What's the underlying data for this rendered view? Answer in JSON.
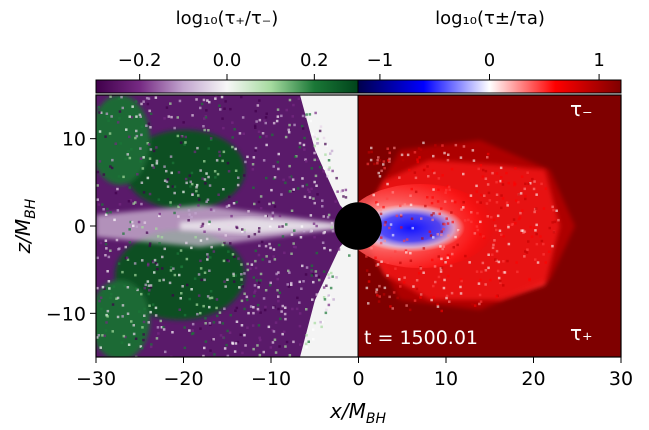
{
  "chart_data": {
    "type": "heatmap",
    "left_panel": {
      "colorbar_label": "log₁₀(τ₊/τ₋)",
      "colorbar_ticks": [
        "−0.2",
        "0.0",
        "0.2"
      ],
      "colorbar_tick_values": [
        -0.2,
        0.0,
        0.2
      ],
      "colorbar_range": [
        -0.3,
        0.3
      ],
      "colormap": [
        "#40004b",
        "#762a83",
        "#c2a5cf",
        "#f7f7f7",
        "#a6dba0",
        "#1b7837",
        "#00441b"
      ]
    },
    "right_panel": {
      "colorbar_label": "log₁₀(τ±/τa)",
      "colorbar_ticks": [
        "−1",
        "0",
        "1"
      ],
      "colorbar_tick_values": [
        -1,
        0,
        1
      ],
      "colorbar_range": [
        -1.2,
        1.2
      ],
      "colormap": [
        "#00004d",
        "#0000ff",
        "#ffffff",
        "#ff0000",
        "#7f0000"
      ],
      "upper_label": "τ₋",
      "lower_label": "τ₊",
      "time_label": "t = 1500.01"
    },
    "x_axis": {
      "label": "x/M",
      "label_sub": "BH",
      "range": [
        -30,
        30
      ],
      "ticks": [
        -30,
        -20,
        -10,
        0,
        10,
        20,
        30
      ],
      "tick_labels": [
        "−30",
        "−20",
        "−10",
        "0",
        "10",
        "20",
        "30"
      ]
    },
    "y_axis": {
      "label": "z/M",
      "label_sub": "BH",
      "range": [
        -15,
        15
      ],
      "ticks": [
        10,
        0,
        -10
      ],
      "tick_labels": [
        "10",
        "0",
        "−10"
      ]
    },
    "black_hole_radius": 1.7
  }
}
